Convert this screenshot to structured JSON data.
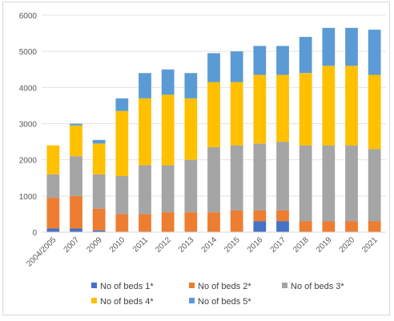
{
  "chart_data": {
    "type": "bar",
    "stacked": true,
    "title": "",
    "xlabel": "",
    "ylabel": "",
    "ylim": [
      0,
      6000
    ],
    "yticks": [
      0,
      1000,
      2000,
      3000,
      4000,
      5000,
      6000
    ],
    "grid": true,
    "legend_position": "bottom",
    "categories": [
      "2004/2005",
      "2007",
      "2009",
      "2010",
      "2011",
      "2012",
      "2013",
      "2014",
      "2015",
      "2016",
      "2017",
      "2018",
      "2019",
      "2020",
      "2021"
    ],
    "series": [
      {
        "name": "No of beds 1*",
        "color": "#4472c4",
        "values": [
          100,
          100,
          50,
          0,
          0,
          0,
          0,
          0,
          0,
          300,
          300,
          0,
          0,
          0,
          0
        ]
      },
      {
        "name": "No of beds 2*",
        "color": "#ed7d31",
        "values": [
          850,
          900,
          600,
          500,
          500,
          550,
          550,
          550,
          600,
          300,
          300,
          300,
          300,
          300,
          300
        ]
      },
      {
        "name": "No of beds 3*",
        "color": "#a5a5a5",
        "values": [
          650,
          1100,
          950,
          1050,
          1350,
          1300,
          1450,
          1800,
          1800,
          1850,
          1900,
          2100,
          2100,
          2100,
          2000
        ]
      },
      {
        "name": "No of beds 4*",
        "color": "#ffc000",
        "values": [
          800,
          850,
          850,
          1800,
          1850,
          1950,
          1700,
          1800,
          1750,
          1900,
          1850,
          2000,
          2200,
          2200,
          2050
        ]
      },
      {
        "name": "No of beds 5*",
        "color": "#5b9bd5",
        "values": [
          0,
          50,
          100,
          350,
          700,
          700,
          700,
          800,
          850,
          800,
          800,
          1000,
          1050,
          1050,
          1250
        ]
      }
    ]
  }
}
